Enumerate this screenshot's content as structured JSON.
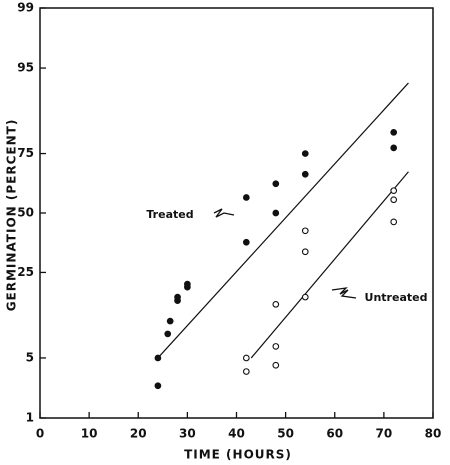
{
  "chart_data": {
    "type": "scatter",
    "xlabel": "TIME (HOURS)",
    "ylabel": "GERMINATION (PERCENT)",
    "xlim": [
      0,
      80
    ],
    "xticks": [
      0,
      10,
      20,
      30,
      40,
      50,
      60,
      70,
      80
    ],
    "ylim": [
      1,
      99
    ],
    "yticks": [
      1,
      5,
      25,
      50,
      75,
      95,
      99
    ],
    "yscale": "probit",
    "series": [
      {
        "name": "Treated",
        "color": "#111111",
        "marker": "filled",
        "x": [
          24,
          24,
          26,
          26.5,
          28,
          28,
          30,
          30,
          42,
          42,
          48,
          48,
          54,
          54,
          72,
          72
        ],
        "values": [
          2.5,
          5,
          8.5,
          11,
          16,
          17,
          20,
          21,
          37,
          57,
          50,
          63,
          67,
          75,
          77,
          82
        ],
        "fit": {
          "x": [
            24,
            75
          ],
          "values": [
            5,
            93
          ]
        }
      },
      {
        "name": "Untreated",
        "color": "#111111",
        "marker": "open",
        "x": [
          42,
          42,
          48,
          48,
          48,
          54,
          54,
          54,
          72,
          72,
          72
        ],
        "values": [
          5,
          3.6,
          15,
          6.5,
          4.2,
          17,
          33,
          42,
          60,
          56,
          46
        ],
        "fit": {
          "x": [
            43,
            75
          ],
          "values": [
            5,
            68
          ]
        }
      }
    ]
  }
}
